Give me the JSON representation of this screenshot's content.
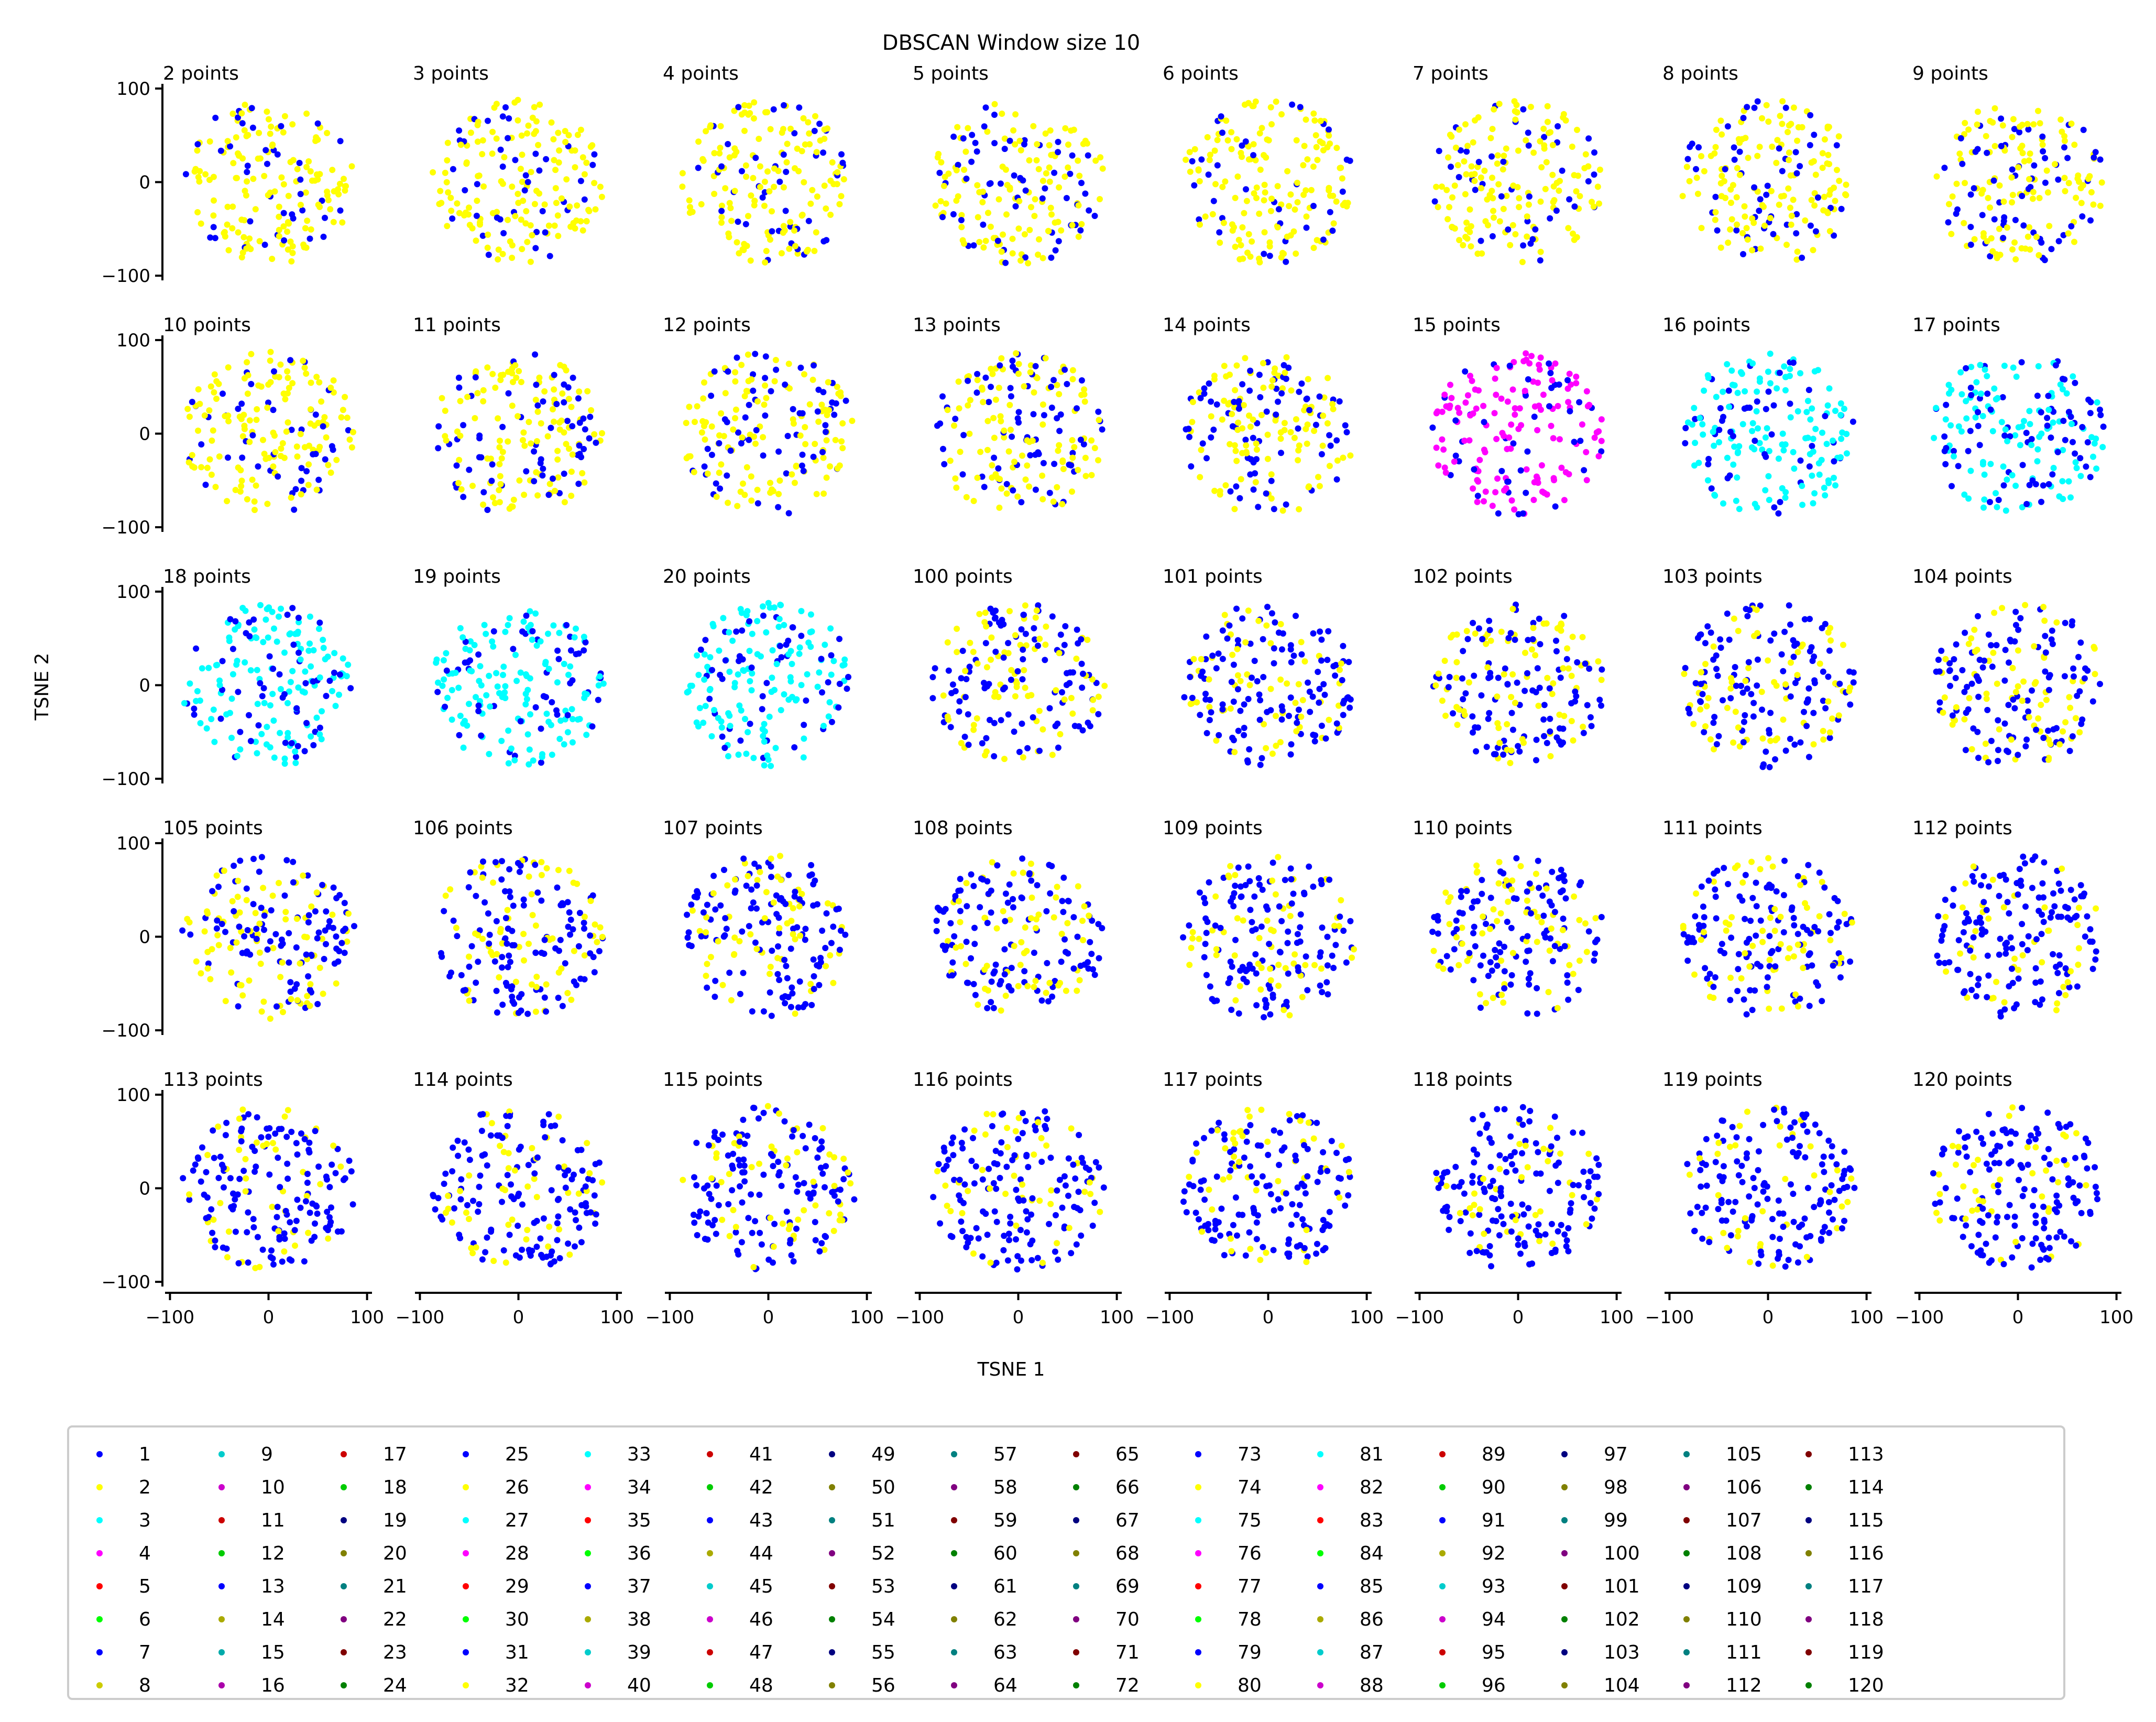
{
  "chart_data": {
    "type": "scatter",
    "title": "DBSCAN Window size 10",
    "xlabel": "TSNE 1",
    "ylabel": "TSNE 2",
    "xlim": [
      -105,
      105
    ],
    "ylim": [
      -105,
      105
    ],
    "xticks": [
      -100,
      0,
      100
    ],
    "yticks": [
      -100,
      0,
      100
    ],
    "grid": false,
    "legend_placement": "bottom",
    "legend_columns": 16,
    "legend_rows": 8,
    "panel_columns": 8,
    "panel_rows": 5,
    "palette": [
      "#0000ff",
      "#ffff00",
      "#00ffff",
      "#ff00ff",
      "#ff0000",
      "#00ff00",
      "#0000cc",
      "#cccc00",
      "#00cccc",
      "#cc00cc",
      "#cc0000",
      "#00cc00",
      "#0000aa",
      "#aaaa00",
      "#00aaaa",
      "#aa00aa",
      "#aa0000",
      "#00aa00",
      "#000080",
      "#808000",
      "#008080",
      "#800080",
      "#800000",
      "#008000"
    ],
    "legend_color_indices": [
      0,
      1,
      2,
      3,
      4,
      5,
      0,
      7,
      8,
      9,
      10,
      11,
      0,
      13,
      14,
      15,
      10,
      11,
      18,
      19,
      20,
      21,
      22,
      23,
      0,
      1,
      2,
      3,
      4,
      5,
      0,
      1,
      2,
      3,
      4,
      5,
      0,
      13,
      8,
      9,
      10,
      11,
      0,
      13,
      8,
      9,
      10,
      11,
      18,
      19,
      20,
      21,
      22,
      23,
      18,
      19,
      20,
      21,
      22,
      23,
      18,
      19,
      20,
      21,
      22,
      23,
      18,
      19,
      20,
      21,
      22,
      23,
      0,
      1,
      2,
      3,
      4,
      5,
      0,
      1,
      2,
      3,
      4,
      5,
      0,
      13,
      8,
      9,
      10,
      11,
      0,
      13,
      8,
      9,
      10,
      11,
      18,
      19,
      20,
      21,
      22,
      23,
      18,
      19,
      20,
      21,
      22,
      23,
      18,
      19,
      20,
      21,
      22,
      23,
      18,
      19,
      20,
      21,
      22,
      23
    ],
    "legend_labels": [
      "1",
      "2",
      "3",
      "4",
      "5",
      "6",
      "7",
      "8",
      "9",
      "10",
      "11",
      "12",
      "13",
      "14",
      "15",
      "16",
      "17",
      "18",
      "19",
      "20",
      "21",
      "22",
      "23",
      "24",
      "25",
      "26",
      "27",
      "28",
      "29",
      "30",
      "31",
      "32",
      "33",
      "34",
      "35",
      "36",
      "37",
      "38",
      "39",
      "40",
      "41",
      "42",
      "43",
      "44",
      "45",
      "46",
      "47",
      "48",
      "49",
      "50",
      "51",
      "52",
      "53",
      "54",
      "55",
      "56",
      "57",
      "58",
      "59",
      "60",
      "61",
      "62",
      "63",
      "64",
      "65",
      "66",
      "67",
      "68",
      "69",
      "70",
      "71",
      "72",
      "73",
      "74",
      "75",
      "76",
      "77",
      "78",
      "79",
      "80",
      "81",
      "82",
      "83",
      "84",
      "85",
      "86",
      "87",
      "88",
      "89",
      "90",
      "91",
      "92",
      "93",
      "94",
      "95",
      "96",
      "97",
      "98",
      "99",
      "100",
      "101",
      "102",
      "103",
      "104",
      "105",
      "106",
      "107",
      "108",
      "109",
      "110",
      "111",
      "112",
      "113",
      "114",
      "115",
      "116",
      "117",
      "118",
      "119",
      "120"
    ],
    "panels": [
      {
        "title": "2 points",
        "base": 1,
        "pts": 180,
        "blue": 0.25
      },
      {
        "title": "3 points",
        "base": 1,
        "pts": 180,
        "blue": 0.2
      },
      {
        "title": "4 points",
        "base": 1,
        "pts": 180,
        "blue": 0.2
      },
      {
        "title": "5 points",
        "base": 1,
        "pts": 180,
        "blue": 0.3
      },
      {
        "title": "6 points",
        "base": 1,
        "pts": 180,
        "blue": 0.2
      },
      {
        "title": "7 points",
        "base": 1,
        "pts": 180,
        "blue": 0.2
      },
      {
        "title": "8 points",
        "base": 1,
        "pts": 180,
        "blue": 0.3
      },
      {
        "title": "9 points",
        "base": 1,
        "pts": 180,
        "blue": 0.3
      },
      {
        "title": "10 points",
        "base": 1,
        "pts": 180,
        "blue": 0.3
      },
      {
        "title": "11 points",
        "base": 1,
        "pts": 180,
        "blue": 0.35
      },
      {
        "title": "12 points",
        "base": 1,
        "pts": 180,
        "blue": 0.35
      },
      {
        "title": "13 points",
        "base": 1,
        "pts": 180,
        "blue": 0.35
      },
      {
        "title": "14 points",
        "base": 1,
        "pts": 180,
        "blue": 0.4
      },
      {
        "title": "15 points",
        "base": 3,
        "pts": 180,
        "blue": 0.3
      },
      {
        "title": "16 points",
        "base": 2,
        "pts": 180,
        "blue": 0.3
      },
      {
        "title": "17 points",
        "base": 2,
        "pts": 180,
        "blue": 0.35
      },
      {
        "title": "18 points",
        "base": 2,
        "pts": 180,
        "blue": 0.35
      },
      {
        "title": "19 points",
        "base": 2,
        "pts": 180,
        "blue": 0.3
      },
      {
        "title": "20 points",
        "base": 2,
        "pts": 180,
        "blue": 0.3
      },
      {
        "title": "100 points",
        "base": 1,
        "pts": 180,
        "blue": 0.6
      },
      {
        "title": "101 points",
        "base": 1,
        "pts": 180,
        "blue": 0.6
      },
      {
        "title": "102 points",
        "base": 1,
        "pts": 180,
        "blue": 0.6
      },
      {
        "title": "103 points",
        "base": 1,
        "pts": 180,
        "blue": 0.6
      },
      {
        "title": "104 points",
        "base": 1,
        "pts": 180,
        "blue": 0.65
      },
      {
        "title": "105 points",
        "base": 1,
        "pts": 180,
        "blue": 0.6
      },
      {
        "title": "106 points",
        "base": 1,
        "pts": 180,
        "blue": 0.6
      },
      {
        "title": "107 points",
        "base": 1,
        "pts": 180,
        "blue": 0.65
      },
      {
        "title": "108 points",
        "base": 1,
        "pts": 180,
        "blue": 0.6
      },
      {
        "title": "109 points",
        "base": 1,
        "pts": 180,
        "blue": 0.65
      },
      {
        "title": "110 points",
        "base": 1,
        "pts": 180,
        "blue": 0.65
      },
      {
        "title": "111 points",
        "base": 1,
        "pts": 180,
        "blue": 0.7
      },
      {
        "title": "112 points",
        "base": 1,
        "pts": 180,
        "blue": 0.7
      },
      {
        "title": "113 points",
        "base": 1,
        "pts": 180,
        "blue": 0.7
      },
      {
        "title": "114 points",
        "base": 1,
        "pts": 180,
        "blue": 0.7
      },
      {
        "title": "115 points",
        "base": 1,
        "pts": 180,
        "blue": 0.75
      },
      {
        "title": "116 points",
        "base": 1,
        "pts": 180,
        "blue": 0.75
      },
      {
        "title": "117 points",
        "base": 1,
        "pts": 180,
        "blue": 0.75
      },
      {
        "title": "118 points",
        "base": 1,
        "pts": 180,
        "blue": 0.75
      },
      {
        "title": "119 points",
        "base": 1,
        "pts": 180,
        "blue": 0.75
      },
      {
        "title": "120 points",
        "base": 1,
        "pts": 180,
        "blue": 0.75
      }
    ]
  }
}
